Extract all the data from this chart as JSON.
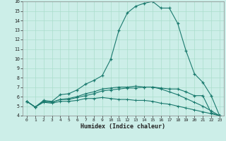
{
  "xlabel": "Humidex (Indice chaleur)",
  "bg_color": "#cceee8",
  "line_color": "#1a7a6e",
  "grid_color": "#aaddcc",
  "xlim": [
    -0.5,
    23.5
  ],
  "ylim": [
    4,
    16
  ],
  "xticks": [
    0,
    1,
    2,
    3,
    4,
    5,
    6,
    7,
    8,
    9,
    10,
    11,
    12,
    13,
    14,
    15,
    16,
    17,
    18,
    19,
    20,
    21,
    22,
    23
  ],
  "yticks": [
    4,
    5,
    6,
    7,
    8,
    9,
    10,
    11,
    12,
    13,
    14,
    15,
    16
  ],
  "line1_x": [
    0,
    1,
    2,
    3,
    4,
    5,
    6,
    7,
    8,
    9,
    10,
    11,
    12,
    13,
    14,
    15,
    16,
    17,
    18,
    19,
    20,
    21,
    22,
    23
  ],
  "line1_y": [
    5.5,
    4.9,
    5.6,
    5.5,
    6.2,
    6.3,
    6.7,
    7.3,
    7.7,
    8.2,
    9.9,
    13.0,
    14.8,
    15.5,
    15.8,
    16.0,
    15.3,
    15.3,
    13.7,
    10.8,
    8.4,
    7.5,
    6.1,
    4.0
  ],
  "line2_x": [
    0,
    1,
    2,
    3,
    4,
    5,
    6,
    7,
    8,
    9,
    10,
    11,
    12,
    13,
    14,
    15,
    16,
    17,
    18,
    19,
    20,
    21,
    22,
    23
  ],
  "line2_y": [
    5.5,
    4.9,
    5.5,
    5.4,
    5.7,
    5.7,
    5.9,
    6.1,
    6.3,
    6.6,
    6.7,
    6.8,
    6.9,
    6.9,
    7.0,
    7.0,
    6.9,
    6.8,
    6.8,
    6.5,
    6.1,
    6.1,
    4.3,
    4.0
  ],
  "line3_x": [
    0,
    1,
    2,
    3,
    4,
    5,
    6,
    7,
    8,
    9,
    10,
    11,
    12,
    13,
    14,
    15,
    16,
    17,
    18,
    19,
    20,
    21,
    22,
    23
  ],
  "line3_y": [
    5.5,
    4.9,
    5.4,
    5.3,
    5.5,
    5.5,
    5.6,
    5.8,
    5.8,
    5.9,
    5.8,
    5.7,
    5.7,
    5.6,
    5.6,
    5.5,
    5.3,
    5.2,
    5.0,
    4.8,
    4.6,
    4.4,
    4.2,
    4.0
  ],
  "line4_x": [
    0,
    1,
    2,
    3,
    4,
    5,
    6,
    7,
    8,
    9,
    10,
    11,
    12,
    13,
    14,
    15,
    16,
    17,
    18,
    19,
    20,
    21,
    22,
    23
  ],
  "line4_y": [
    5.5,
    4.9,
    5.5,
    5.4,
    5.7,
    5.8,
    6.0,
    6.3,
    6.5,
    6.8,
    6.9,
    7.0,
    7.0,
    7.1,
    7.0,
    7.0,
    6.8,
    6.5,
    6.2,
    5.8,
    5.4,
    5.0,
    4.5,
    4.0
  ]
}
